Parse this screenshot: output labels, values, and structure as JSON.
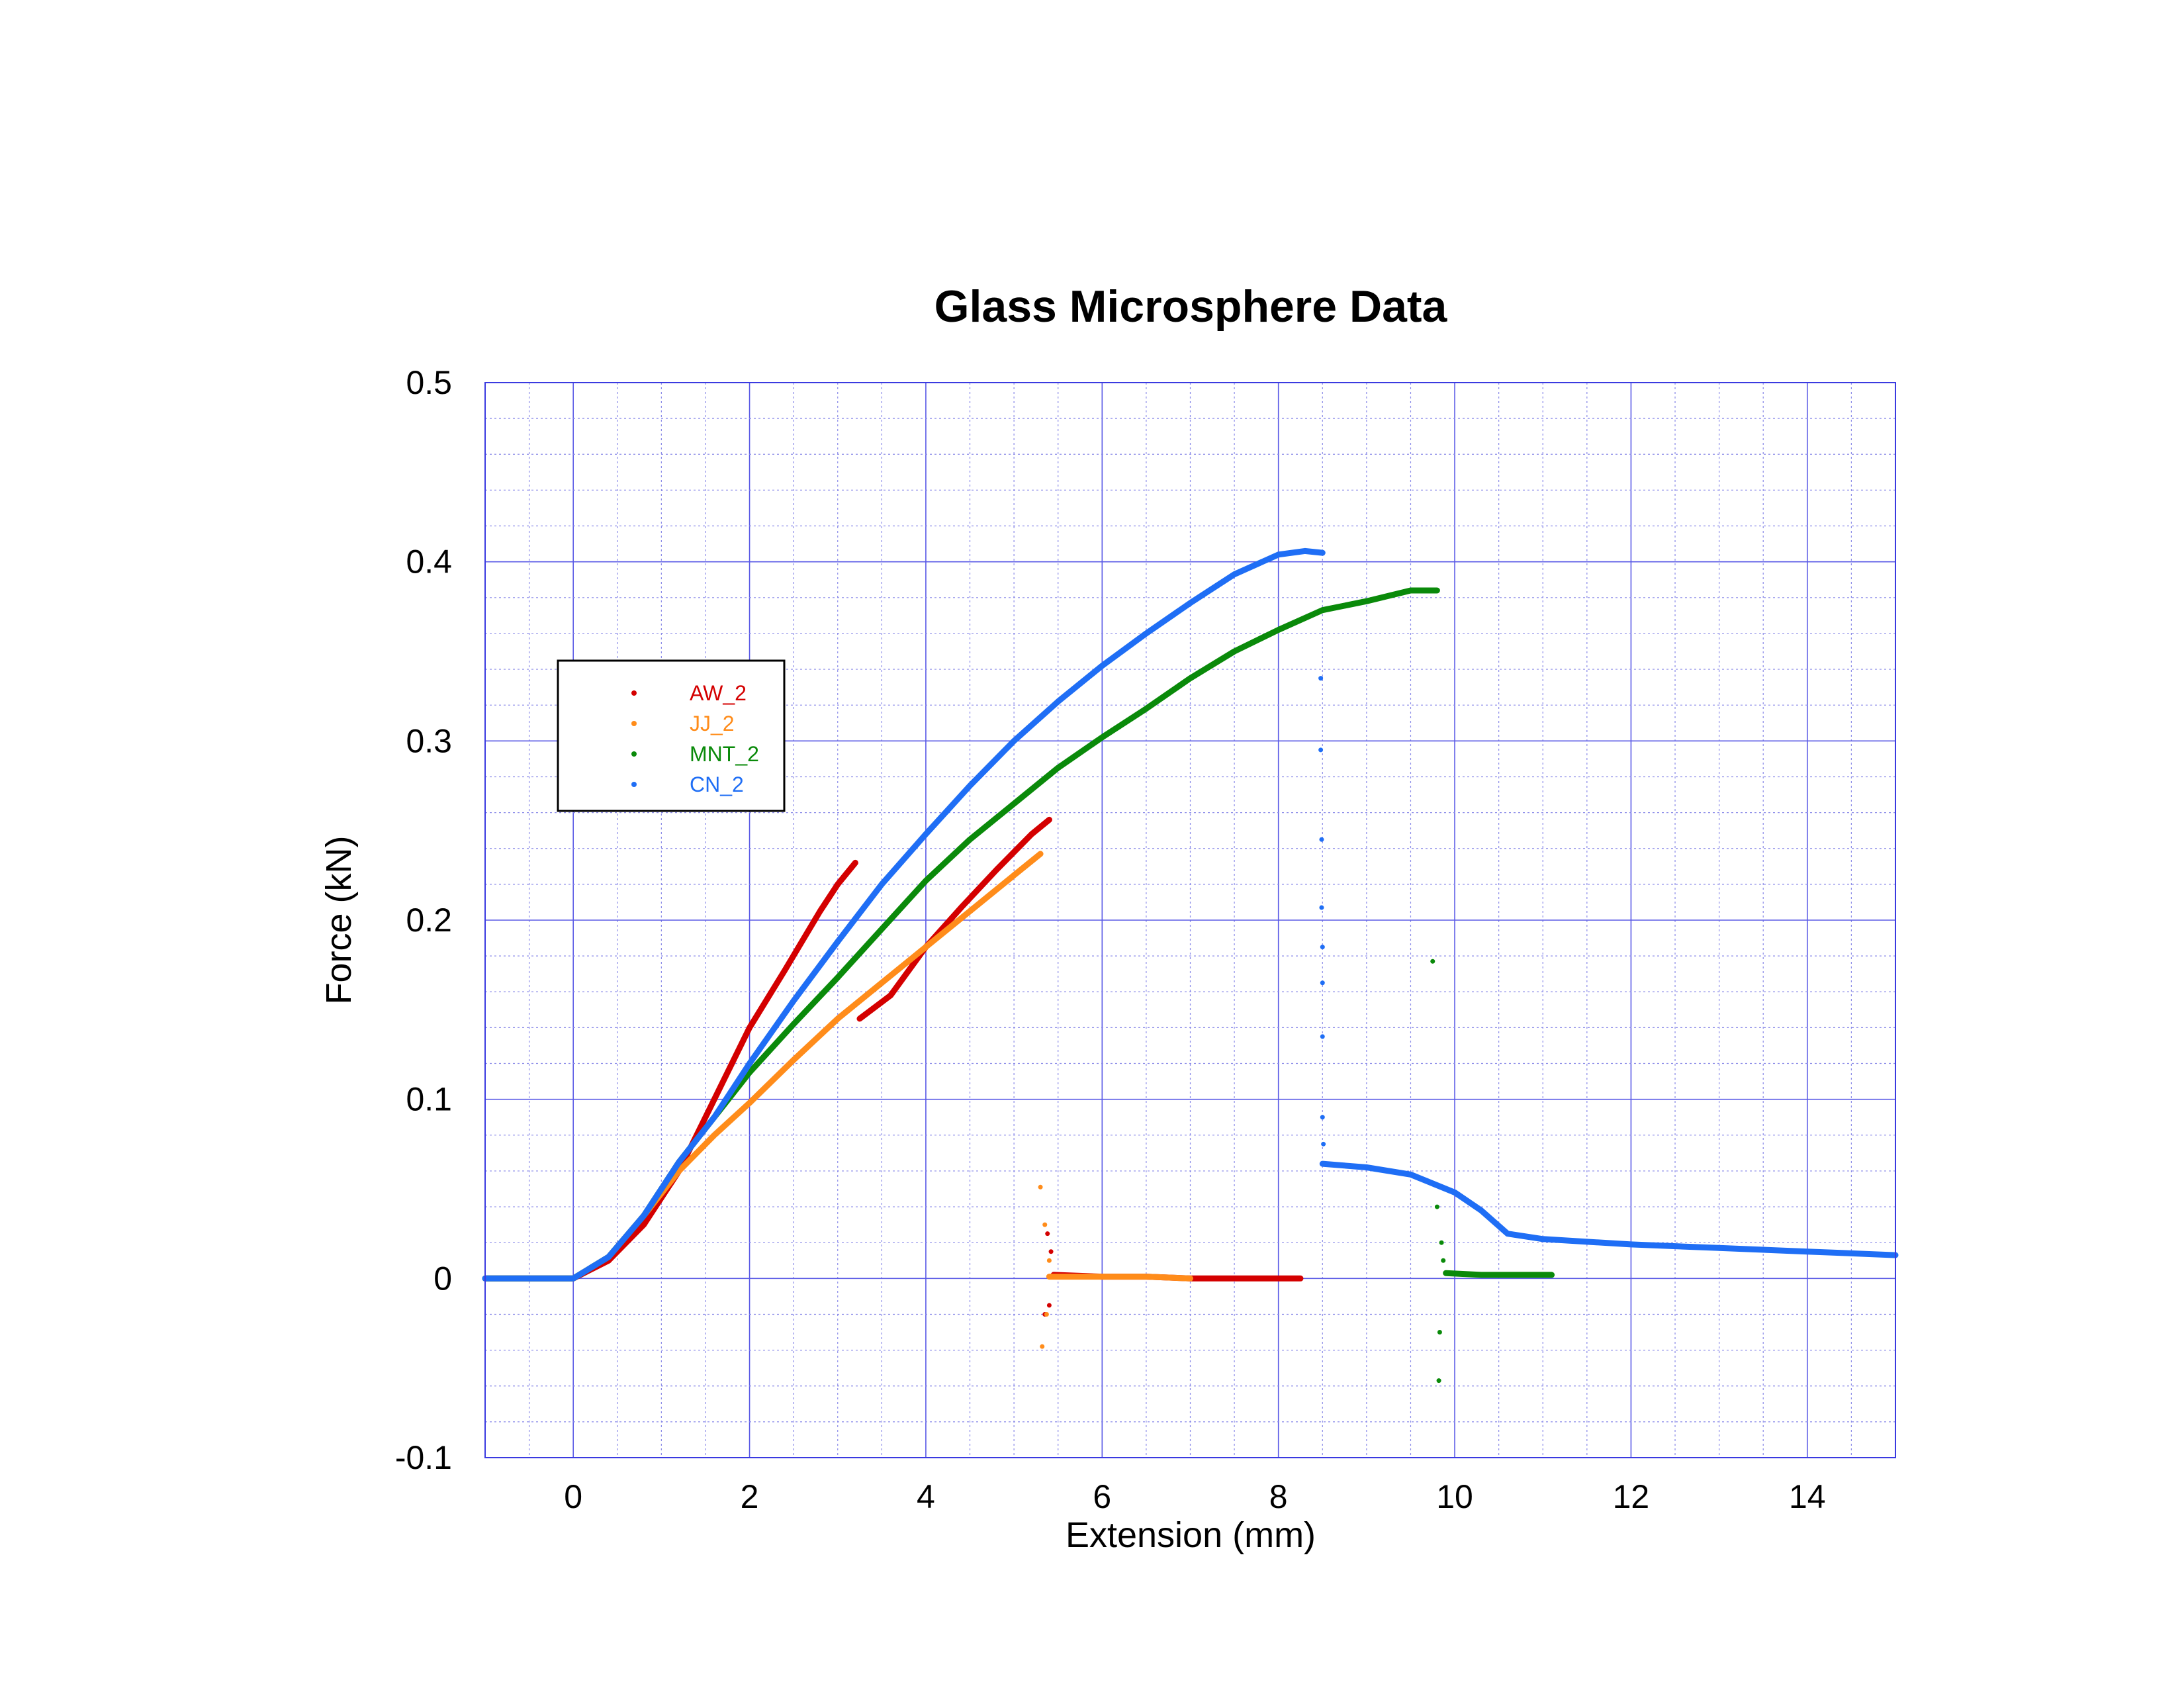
{
  "chart_data": {
    "type": "scatter",
    "title": "Glass Microsphere Data",
    "xlabel": "Extension (mm)",
    "ylabel": "Force (kN)",
    "xlim": [
      -1,
      15
    ],
    "ylim": [
      -0.1,
      0.5
    ],
    "x_ticks": [
      0,
      2,
      4,
      6,
      8,
      10,
      12,
      14
    ],
    "y_ticks": [
      -0.1,
      0,
      0.1,
      0.2,
      0.3,
      0.4,
      0.5
    ],
    "x_tick_labels": [
      "0",
      "2",
      "4",
      "6",
      "8",
      "10",
      "12",
      "14"
    ],
    "y_tick_labels": [
      "-0.1",
      "0",
      "0.1",
      "0.2",
      "0.3",
      "0.4",
      "0.5"
    ],
    "grid": true,
    "minor_grid": true,
    "legend_position": "upper-left",
    "series": [
      {
        "name": "AW_2",
        "color": "#d40000",
        "segments": [
          [
            [
              -1,
              0.0
            ],
            [
              0,
              0.0
            ],
            [
              0.4,
              0.01
            ],
            [
              0.8,
              0.03
            ],
            [
              1.2,
              0.06
            ],
            [
              1.6,
              0.1
            ],
            [
              2.0,
              0.14
            ],
            [
              2.4,
              0.172
            ],
            [
              2.8,
              0.205
            ],
            [
              3.0,
              0.22
            ],
            [
              3.2,
              0.232
            ]
          ],
          [
            [
              3.25,
              0.145
            ],
            [
              3.6,
              0.158
            ],
            [
              4.0,
              0.185
            ],
            [
              4.4,
              0.207
            ],
            [
              4.8,
              0.228
            ],
            [
              5.2,
              0.248
            ],
            [
              5.4,
              0.256
            ]
          ],
          [
            [
              5.45,
              0.002
            ],
            [
              6.0,
              0.001
            ],
            [
              6.5,
              0.001
            ],
            [
              7.0,
              0.0
            ],
            [
              7.5,
              0.0
            ],
            [
              8.0,
              0.0
            ],
            [
              8.25,
              0.0
            ]
          ]
        ],
        "scatter": [
          [
            5.35,
            -0.02
          ],
          [
            5.38,
            0.025
          ],
          [
            5.42,
            0.015
          ],
          [
            5.4,
            -0.015
          ]
        ]
      },
      {
        "name": "JJ_2",
        "color": "#ff8c1a",
        "segments": [
          [
            [
              -1,
              0.0
            ],
            [
              0,
              0.0
            ],
            [
              0.4,
              0.012
            ],
            [
              0.8,
              0.035
            ],
            [
              1.2,
              0.06
            ],
            [
              1.6,
              0.08
            ],
            [
              2.0,
              0.098
            ],
            [
              2.5,
              0.122
            ],
            [
              3.0,
              0.145
            ],
            [
              3.5,
              0.165
            ],
            [
              4.0,
              0.185
            ],
            [
              4.5,
              0.205
            ],
            [
              5.0,
              0.225
            ],
            [
              5.3,
              0.237
            ]
          ],
          [
            [
              5.4,
              0.001
            ],
            [
              6.0,
              0.001
            ],
            [
              6.5,
              0.001
            ],
            [
              7.0,
              0.0
            ]
          ]
        ],
        "scatter": [
          [
            5.3,
            0.051
          ],
          [
            5.32,
            -0.038
          ],
          [
            5.35,
            0.03
          ],
          [
            5.37,
            -0.02
          ],
          [
            5.4,
            0.01
          ]
        ]
      },
      {
        "name": "MNT_2",
        "color": "#0a8a0a",
        "segments": [
          [
            [
              -1,
              0.0
            ],
            [
              0,
              0.0
            ],
            [
              0.4,
              0.012
            ],
            [
              0.8,
              0.035
            ],
            [
              1.2,
              0.065
            ],
            [
              1.6,
              0.09
            ],
            [
              2.0,
              0.115
            ],
            [
              2.5,
              0.142
            ],
            [
              3.0,
              0.168
            ],
            [
              3.5,
              0.195
            ],
            [
              4.0,
              0.222
            ],
            [
              4.5,
              0.245
            ],
            [
              5.0,
              0.265
            ],
            [
              5.5,
              0.285
            ],
            [
              6.0,
              0.302
            ],
            [
              6.5,
              0.318
            ],
            [
              7.0,
              0.335
            ],
            [
              7.5,
              0.35
            ],
            [
              8.0,
              0.362
            ],
            [
              8.5,
              0.373
            ],
            [
              9.0,
              0.378
            ],
            [
              9.5,
              0.384
            ],
            [
              9.8,
              0.384
            ]
          ],
          [
            [
              9.9,
              0.003
            ],
            [
              10.3,
              0.002
            ],
            [
              10.7,
              0.002
            ],
            [
              11.1,
              0.002
            ]
          ]
        ],
        "scatter": [
          [
            9.75,
            0.177
          ],
          [
            9.8,
            0.04
          ],
          [
            9.82,
            -0.057
          ],
          [
            9.83,
            -0.03
          ],
          [
            9.85,
            0.02
          ],
          [
            9.87,
            0.01
          ]
        ]
      },
      {
        "name": "CN_2",
        "color": "#1f6ef5",
        "segments": [
          [
            [
              -1,
              0.0
            ],
            [
              0,
              0.0
            ],
            [
              0.4,
              0.012
            ],
            [
              0.8,
              0.035
            ],
            [
              1.2,
              0.065
            ],
            [
              1.6,
              0.09
            ],
            [
              2.0,
              0.12
            ],
            [
              2.5,
              0.155
            ],
            [
              3.0,
              0.188
            ],
            [
              3.5,
              0.22
            ],
            [
              4.0,
              0.248
            ],
            [
              4.5,
              0.275
            ],
            [
              5.0,
              0.3
            ],
            [
              5.5,
              0.322
            ],
            [
              6.0,
              0.342
            ],
            [
              6.5,
              0.36
            ],
            [
              7.0,
              0.377
            ],
            [
              7.5,
              0.393
            ],
            [
              8.0,
              0.404
            ],
            [
              8.3,
              0.406
            ],
            [
              8.5,
              0.405
            ]
          ],
          [
            [
              8.5,
              0.064
            ],
            [
              9.0,
              0.062
            ],
            [
              9.5,
              0.058
            ],
            [
              10.0,
              0.048
            ],
            [
              10.3,
              0.038
            ],
            [
              10.6,
              0.025
            ],
            [
              11.0,
              0.022
            ],
            [
              12.0,
              0.019
            ],
            [
              13.0,
              0.017
            ],
            [
              14.0,
              0.015
            ],
            [
              15.0,
              0.013
            ]
          ]
        ],
        "scatter": [
          [
            8.48,
            0.335
          ],
          [
            8.48,
            0.295
          ],
          [
            8.49,
            0.245
          ],
          [
            8.49,
            0.207
          ],
          [
            8.5,
            0.185
          ],
          [
            8.5,
            0.165
          ],
          [
            8.5,
            0.135
          ],
          [
            8.5,
            0.09
          ],
          [
            8.51,
            0.075
          ]
        ]
      }
    ]
  }
}
